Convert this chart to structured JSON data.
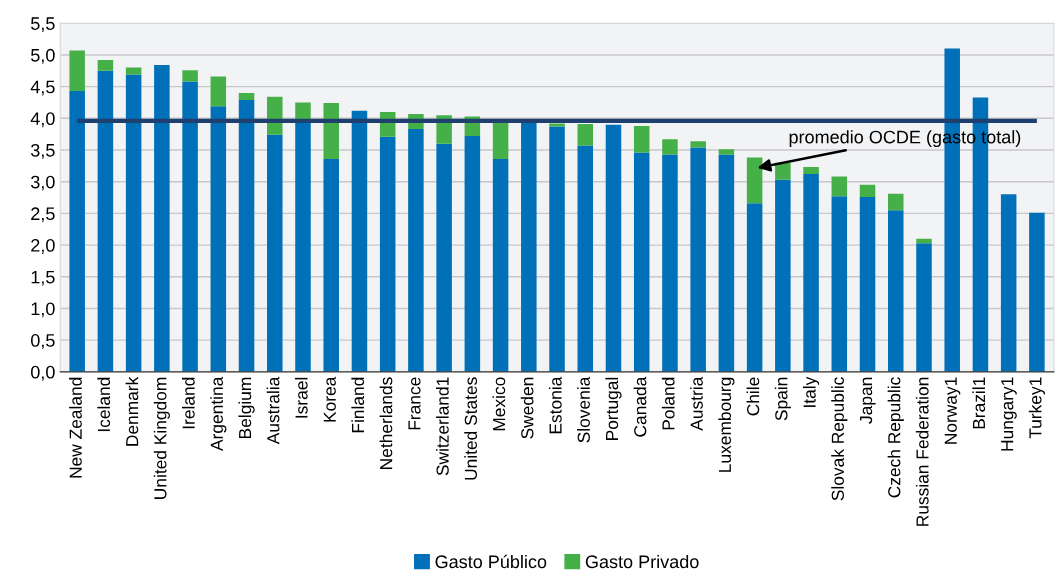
{
  "chart_data": {
    "type": "bar",
    "stacked": true,
    "categories": [
      "New Zealand",
      "Iceland",
      "Denmark",
      "United Kingdom",
      "Ireland",
      "Argentina",
      "Belgium",
      "Australia",
      "Israel",
      "Korea",
      "Finland",
      "Netherlands",
      "France",
      "Switzerland1",
      "United States",
      "Mexico",
      "Sweden",
      "Estonia",
      "Slovenia",
      "Portugal",
      "Canada",
      "Poland",
      "Austria",
      "Luxembourg",
      "Chile",
      "Spain",
      "Italy",
      "Slovak Republic",
      "Japan",
      "Czech Republic",
      "Russian Federation",
      "Norway1",
      "Brazil1",
      "Hungary1",
      "Turkey1"
    ],
    "series": [
      {
        "name": "Gasto Público",
        "color": "#0070b8",
        "values": [
          4.43,
          4.75,
          4.69,
          4.84,
          4.58,
          4.19,
          4.29,
          3.74,
          3.97,
          3.36,
          4.12,
          3.71,
          3.83,
          3.6,
          3.72,
          3.36,
          3.97,
          3.87,
          3.57,
          3.9,
          3.46,
          3.43,
          3.54,
          3.43,
          2.66,
          3.03,
          3.12,
          2.77,
          2.76,
          2.55,
          2.03,
          5.1,
          4.33,
          2.8,
          2.51
        ]
      },
      {
        "name": "Gasto Privado",
        "color": "#45b048",
        "values": [
          0.64,
          0.17,
          0.11,
          0,
          0.18,
          0.47,
          0.11,
          0.6,
          0.28,
          0.88,
          0,
          0.39,
          0.24,
          0.45,
          0.31,
          0.6,
          0,
          0.05,
          0.34,
          0,
          0.42,
          0.24,
          0.1,
          0.08,
          0.72,
          0.27,
          0.11,
          0.31,
          0.19,
          0.26,
          0.07,
          0,
          0,
          0,
          0
        ]
      }
    ],
    "ylim": [
      0,
      5.5
    ],
    "yticks": [
      {
        "value": 0,
        "label": "0,0"
      },
      {
        "value": 0.5,
        "label": "0,5"
      },
      {
        "value": 1,
        "label": "1,0"
      },
      {
        "value": 1.5,
        "label": "1,5"
      },
      {
        "value": 2,
        "label": "2,0"
      },
      {
        "value": 2.5,
        "label": "2,5"
      },
      {
        "value": 3,
        "label": "3,0"
      },
      {
        "value": 3.5,
        "label": "3,5"
      },
      {
        "value": 4,
        "label": "4,0"
      },
      {
        "value": 4.5,
        "label": "4,5"
      },
      {
        "value": 5,
        "label": "5,0"
      },
      {
        "value": 5.5,
        "label": "5,5"
      }
    ],
    "ref_lines": [
      {
        "axis": "y",
        "value": 3.96,
        "label": "promedio OCDE (gasto total)",
        "color": "#1f3f6e"
      }
    ],
    "grid": "y",
    "legend": "bottom"
  }
}
